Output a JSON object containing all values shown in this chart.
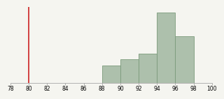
{
  "bin_edges": [
    78,
    80,
    82,
    84,
    86,
    88,
    90,
    92,
    94,
    96,
    98,
    100
  ],
  "counts": [
    0,
    0,
    0,
    0,
    0,
    3,
    4,
    5,
    12,
    8,
    0
  ],
  "bar_color": "#adc0ac",
  "bar_edge_color": "#7a9a7a",
  "bar_linewidth": 0.6,
  "vline_x": 80,
  "vline_color": "#cc2222",
  "vline_linewidth": 1.2,
  "xlim": [
    78,
    100
  ],
  "ylim": [
    0,
    13
  ],
  "xticks": [
    78,
    80,
    82,
    84,
    86,
    88,
    90,
    92,
    94,
    96,
    98,
    100
  ],
  "background_color": "#f5f5f0",
  "tick_fontsize": 5.5,
  "spine_color": "#999999"
}
